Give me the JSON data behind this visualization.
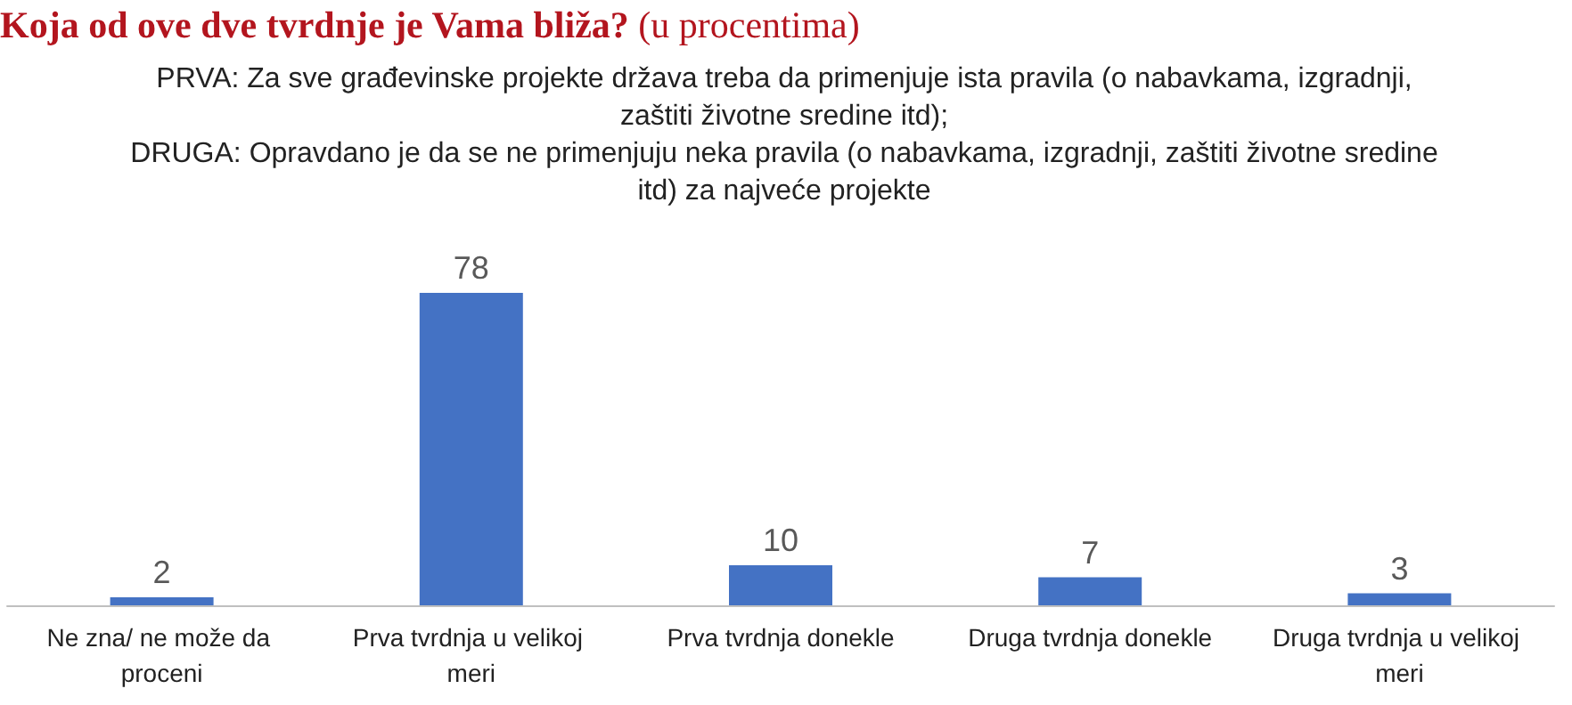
{
  "chart_data": {
    "type": "bar",
    "title": "Koja od ove dve tvrdnje je Vama bliža?",
    "subtitle": "(u procentima)",
    "annotations": [
      "PRVA: Za sve građevinske projekte država treba da primenjuje ista pravila (o nabavkama, izgradnji, zaštiti životne sredine itd);",
      "DRUGA: Opravdano je da se ne primenjuju neka pravila (o nabavkama, izgradnji, zaštiti životne sredine itd) za najveće projekte"
    ],
    "categories": [
      "Ne zna/ ne može da proceni",
      "Prva tvrdnja u velikoj meri",
      "Prva tvrdnja donekle",
      "Druga tvrdnja donekle",
      "Druga tvrdnja u velikoj meri"
    ],
    "values": [
      2,
      78,
      10,
      7,
      3
    ],
    "color": "#4472c4",
    "data_labels": true
  }
}
